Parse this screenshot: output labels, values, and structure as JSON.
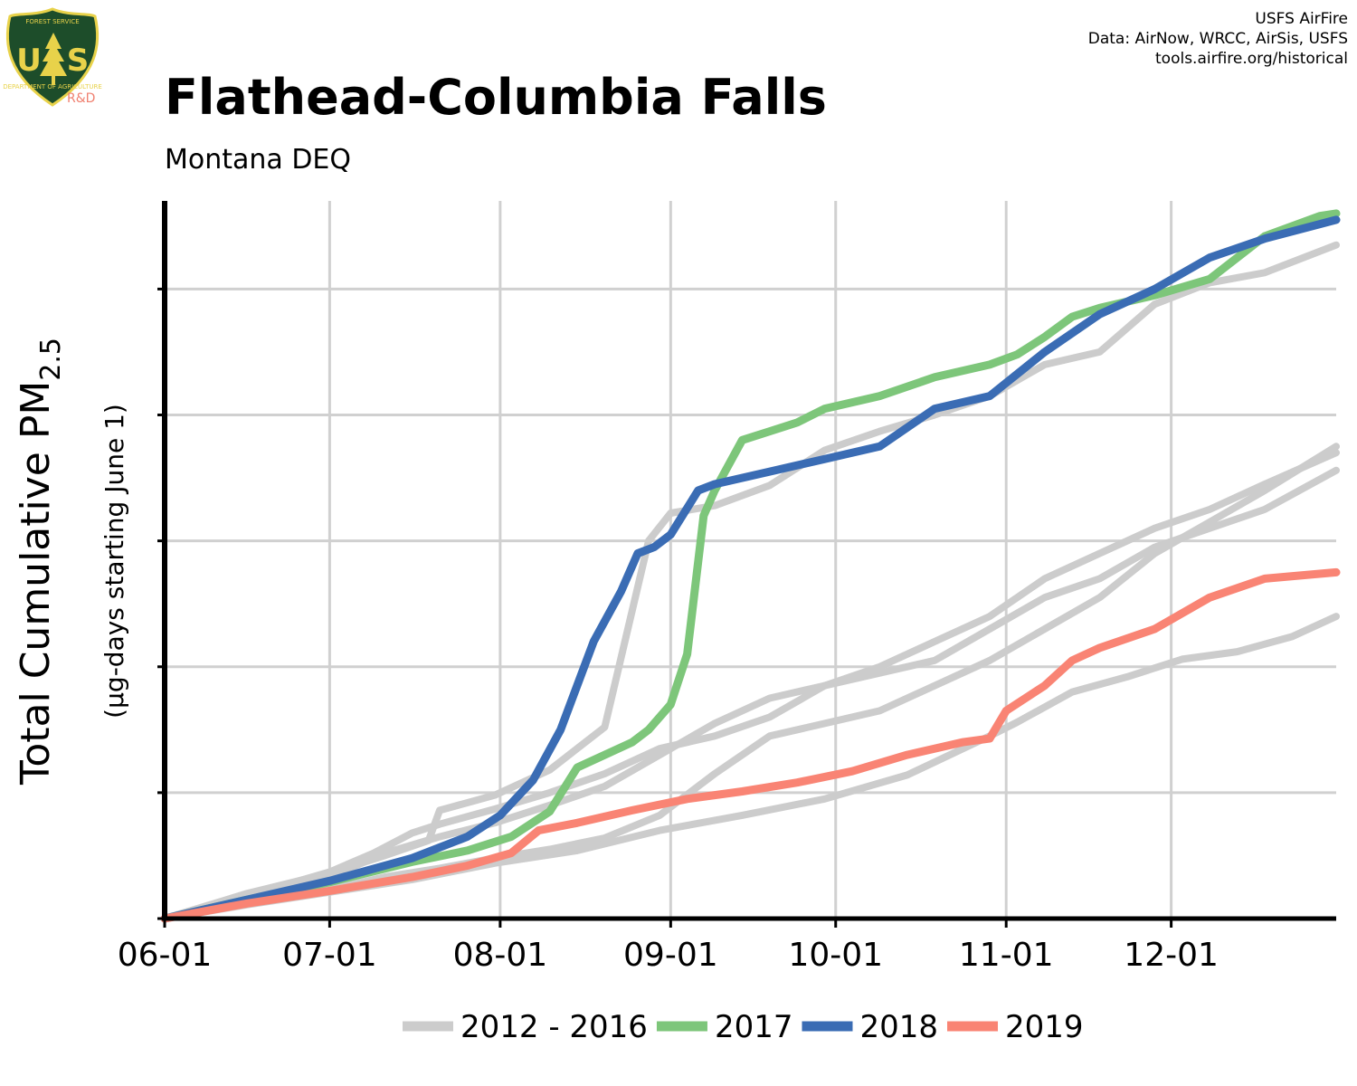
{
  "header": {
    "title": "Flathead-Columbia Falls",
    "subtitle": "Montana DEQ",
    "credits": [
      "USFS AirFire",
      "Data: AirNow, WRCC, AirSis, USFS",
      "tools.airfire.org/historical"
    ]
  },
  "logo": {
    "top_text": "FOREST SERVICE",
    "left_letter": "U",
    "right_letter": "S",
    "bottom_text": "DEPARTMENT OF AGRICULTURE",
    "rd_label": "R&D",
    "shield_color": "#1d4d2a",
    "gold_color": "#e8d24a"
  },
  "chart_data": {
    "type": "line",
    "title": "Flathead-Columbia Falls",
    "subtitle": "Montana DEQ",
    "ylabel": "Total Cumulative PM",
    "ylabel_subscript": "2.5",
    "ylabel_sub": "(µg-days starting June 1)",
    "xlabel": "",
    "x_tick_labels": [
      "06-01",
      "07-01",
      "08-01",
      "09-01",
      "10-01",
      "11-01",
      "12-01"
    ],
    "x_tick_days": [
      0,
      30,
      61,
      92,
      122,
      153,
      183
    ],
    "xlim": [
      0,
      213
    ],
    "ylim": [
      0,
      5700
    ],
    "y_ticks": [
      0,
      1000,
      2000,
      3000,
      4000,
      5000
    ],
    "y_tick_labels_shown": false,
    "grid": true,
    "legend_position": "bottom",
    "legend": [
      {
        "label": "2012 - 2016",
        "color": "#cccccc"
      },
      {
        "label": "2017",
        "color": "#7dc67a"
      },
      {
        "label": "2018",
        "color": "#3a6cb4"
      },
      {
        "label": "2019",
        "color": "#f98474"
      }
    ],
    "background_series": [
      {
        "color": "#cccccc",
        "x": [
          0,
          15,
          30,
          38,
          45,
          50,
          60,
          70,
          80,
          90,
          100,
          110,
          120,
          130,
          140,
          150,
          160,
          170,
          180,
          190,
          200,
          213
        ],
        "y": [
          0,
          180,
          370,
          520,
          680,
          750,
          870,
          1000,
          1150,
          1350,
          1450,
          1600,
          1850,
          2000,
          2200,
          2400,
          2700,
          2900,
          3100,
          3250,
          3450,
          3700
        ]
      },
      {
        "color": "#cccccc",
        "x": [
          0,
          15,
          30,
          40,
          48,
          50,
          60,
          70,
          80,
          88,
          92,
          100,
          110,
          120,
          130,
          140,
          150,
          160,
          170,
          180,
          190,
          200,
          213
        ],
        "y": [
          0,
          200,
          360,
          500,
          620,
          860,
          980,
          1180,
          1520,
          3000,
          3220,
          3280,
          3440,
          3720,
          3870,
          4000,
          4150,
          4400,
          4500,
          4880,
          5050,
          5130,
          5350
        ]
      },
      {
        "color": "#cccccc",
        "x": [
          0,
          15,
          30,
          40,
          50,
          60,
          70,
          80,
          90,
          100,
          110,
          120,
          130,
          140,
          150,
          160,
          170,
          180,
          190,
          200,
          213
        ],
        "y": [
          0,
          170,
          330,
          520,
          650,
          760,
          900,
          1050,
          1300,
          1550,
          1750,
          1850,
          1950,
          2050,
          2300,
          2550,
          2700,
          2950,
          3100,
          3250,
          3560
        ]
      },
      {
        "color": "#cccccc",
        "x": [
          0,
          15,
          30,
          40,
          50,
          60,
          70,
          80,
          90,
          100,
          110,
          120,
          130,
          140,
          150,
          160,
          170,
          180,
          190,
          200,
          213
        ],
        "y": [
          0,
          120,
          230,
          330,
          400,
          480,
          550,
          640,
          820,
          1150,
          1450,
          1550,
          1650,
          1850,
          2050,
          2300,
          2550,
          2900,
          3150,
          3400,
          3750
        ]
      },
      {
        "color": "#cccccc",
        "x": [
          0,
          15,
          30,
          45,
          60,
          75,
          90,
          105,
          120,
          135,
          150,
          155,
          165,
          175,
          185,
          195,
          205,
          213
        ],
        "y": [
          0,
          110,
          210,
          310,
          440,
          540,
          700,
          820,
          950,
          1140,
          1450,
          1560,
          1800,
          1920,
          2060,
          2120,
          2240,
          2400
        ]
      }
    ],
    "series": [
      {
        "name": "2017",
        "color": "#7dc67a",
        "x": [
          0,
          15,
          30,
          45,
          55,
          63,
          70,
          75,
          85,
          88,
          92,
          95,
          98,
          100,
          105,
          110,
          115,
          120,
          130,
          140,
          150,
          155,
          160,
          165,
          170,
          180,
          190,
          200,
          210,
          213
        ],
        "y": [
          0,
          150,
          290,
          450,
          540,
          650,
          850,
          1200,
          1400,
          1500,
          1700,
          2100,
          3200,
          3400,
          3800,
          3870,
          3940,
          4050,
          4150,
          4300,
          4400,
          4480,
          4620,
          4780,
          4850,
          4950,
          5080,
          5420,
          5580,
          5600
        ]
      },
      {
        "name": "2018",
        "color": "#3a6cb4",
        "x": [
          0,
          15,
          30,
          45,
          55,
          61,
          67,
          72,
          78,
          83,
          86,
          89,
          92,
          97,
          100,
          110,
          120,
          130,
          140,
          150,
          160,
          170,
          180,
          190,
          200,
          213
        ],
        "y": [
          0,
          150,
          300,
          480,
          650,
          820,
          1100,
          1500,
          2200,
          2600,
          2900,
          2950,
          3050,
          3400,
          3450,
          3550,
          3650,
          3750,
          4050,
          4150,
          4500,
          4800,
          5000,
          5250,
          5400,
          5550
        ]
      },
      {
        "name": "2019",
        "color": "#f98474",
        "x": [
          0,
          15,
          30,
          45,
          55,
          63,
          68,
          75,
          85,
          95,
          105,
          115,
          125,
          135,
          145,
          150,
          153,
          160,
          165,
          170,
          180,
          190,
          200,
          213
        ],
        "y": [
          0,
          120,
          220,
          330,
          420,
          520,
          700,
          760,
          860,
          950,
          1010,
          1080,
          1170,
          1300,
          1400,
          1430,
          1650,
          1850,
          2050,
          2150,
          2300,
          2550,
          2700,
          2750
        ]
      }
    ]
  }
}
